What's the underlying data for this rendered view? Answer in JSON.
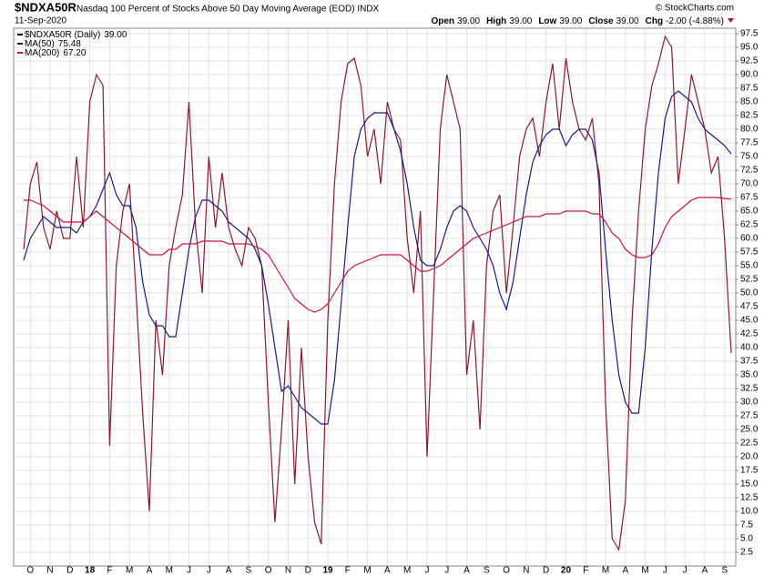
{
  "chart_data": {
    "type": "line",
    "title": "$NDXA50R",
    "subtitle": "Nasdaq 100 Percent of Stocks Above 50 Day Moving Average (EOD) INDX",
    "date": "11-Sep-2020",
    "source": "© StockCharts.com",
    "quote": [
      {
        "label": "Open",
        "value": "39.00"
      },
      {
        "label": "High",
        "value": "39.00"
      },
      {
        "label": "Low",
        "value": "39.00"
      },
      {
        "label": "Close",
        "value": "39.00"
      },
      {
        "label": "Chg",
        "value": "-2.00 (-4.88%)"
      }
    ],
    "categories": [
      null,
      "O",
      null,
      null,
      "N",
      null,
      null,
      "D",
      null,
      null,
      "18",
      null,
      null,
      "F",
      null,
      null,
      "M",
      null,
      null,
      "A",
      null,
      null,
      "M",
      null,
      null,
      "J",
      null,
      null,
      "J",
      null,
      null,
      "A",
      null,
      null,
      "S",
      null,
      null,
      "O",
      null,
      null,
      "N",
      null,
      null,
      "D",
      null,
      null,
      "19",
      null,
      null,
      "F",
      null,
      null,
      "M",
      null,
      null,
      "A",
      null,
      null,
      "M",
      null,
      null,
      "J",
      null,
      null,
      "J",
      null,
      null,
      "A",
      null,
      null,
      "S",
      null,
      null,
      "O",
      null,
      null,
      "N",
      null,
      null,
      "D",
      null,
      null,
      "20",
      null,
      null,
      "F",
      null,
      null,
      "M",
      null,
      null,
      "A",
      null,
      null,
      "M",
      null,
      null,
      "J",
      null,
      null,
      "J",
      null,
      null,
      "A",
      null,
      null,
      "S",
      null
    ],
    "series": [
      {
        "name": "$NDXA50R (Daily)",
        "last_label": "39.00",
        "color": "#8b1a2e",
        "width": 1.2,
        "values": [
          58,
          70,
          74,
          62,
          58,
          65,
          60,
          60,
          75,
          62,
          85,
          90,
          88,
          22,
          55,
          65,
          70,
          50,
          28,
          10,
          45,
          35,
          55,
          62,
          68,
          85,
          62,
          50,
          75,
          62,
          72,
          62,
          58,
          55,
          62,
          60,
          55,
          30,
          8,
          25,
          45,
          15,
          40,
          20,
          8,
          4,
          45,
          70,
          85,
          92,
          93,
          88,
          75,
          80,
          70,
          85,
          80,
          78,
          60,
          50,
          65,
          20,
          50,
          80,
          90,
          85,
          80,
          35,
          45,
          25,
          55,
          65,
          68,
          50,
          62,
          75,
          80,
          82,
          75,
          85,
          92,
          80,
          93,
          85,
          80,
          78,
          82,
          70,
          30,
          5,
          3,
          12,
          45,
          65,
          80,
          88,
          92,
          97,
          95,
          70,
          80,
          90,
          85,
          80,
          72,
          75,
          60,
          39
        ]
      },
      {
        "name": "MA(50)",
        "last_label": "75.48",
        "color": "#1a1a8c",
        "width": 1.2,
        "values": [
          56,
          60,
          62,
          64,
          63,
          62,
          62,
          62,
          61,
          63,
          64,
          66,
          69,
          72,
          68,
          66,
          66,
          62,
          52,
          46,
          44,
          44,
          42,
          42,
          50,
          58,
          64,
          67,
          67,
          66,
          65,
          63,
          62,
          61,
          60,
          58,
          55,
          48,
          40,
          32,
          33,
          31,
          29,
          28,
          27,
          26,
          26,
          34,
          48,
          62,
          75,
          80,
          82,
          83,
          83,
          83,
          80,
          76,
          70,
          62,
          56,
          55,
          55,
          58,
          62,
          65,
          66,
          65,
          62,
          60,
          58,
          55,
          50,
          47,
          52,
          60,
          68,
          74,
          77,
          79,
          80,
          80,
          77,
          79,
          80,
          80,
          78,
          72,
          58,
          45,
          35,
          30,
          28,
          28,
          40,
          58,
          72,
          82,
          86,
          87,
          86,
          85,
          82,
          80,
          79,
          78,
          77,
          75.48
        ]
      },
      {
        "name": "MA(200)",
        "last_label": "67.20",
        "color": "#d0103a",
        "width": 1.2,
        "values": [
          67,
          67,
          66.5,
          66,
          65,
          64,
          63,
          63,
          63,
          63,
          64,
          65,
          64,
          63,
          62,
          61,
          60,
          59,
          58,
          57,
          57,
          57,
          58,
          58,
          59,
          59,
          59,
          59.5,
          59.5,
          59.5,
          59.5,
          59,
          59,
          59,
          59,
          58.5,
          58,
          57,
          55,
          53,
          51,
          49,
          48,
          47,
          46.5,
          47,
          48,
          50,
          52,
          54,
          55,
          55.5,
          56,
          56.5,
          57,
          57,
          57,
          57,
          56,
          55,
          54,
          54,
          54.5,
          55,
          56,
          57,
          58,
          59,
          60,
          60.5,
          61,
          61.5,
          62,
          62.5,
          63,
          63.5,
          64,
          64,
          64,
          64.5,
          64.5,
          64.5,
          65,
          65,
          65,
          65,
          64.5,
          64.5,
          63,
          61,
          60,
          58,
          57,
          56.5,
          56.5,
          57,
          59,
          62,
          64,
          65,
          66,
          67,
          67.5,
          67.5,
          67.5,
          67.5,
          67.3,
          67.2
        ]
      }
    ],
    "ylim": [
      0,
      98.5
    ],
    "yticks": [
      2.5,
      {
        "value": 5,
        "label": "5.0"
      },
      7.5,
      {
        "value": 10,
        "label": "10.0"
      },
      12.5,
      {
        "value": 15,
        "label": "15.0"
      },
      17.5,
      {
        "value": 20,
        "label": "20.0"
      },
      22.5,
      {
        "value": 25,
        "label": "25.0"
      },
      27.5,
      {
        "value": 30,
        "label": "30.0"
      },
      32.5,
      {
        "value": 35,
        "label": "35.0"
      },
      37.5,
      {
        "value": 40,
        "label": "40.0"
      },
      42.5,
      {
        "value": 45,
        "label": "45.0"
      },
      47.5,
      {
        "value": 50,
        "label": "50.0"
      },
      52.5,
      {
        "value": 55,
        "label": "55.0"
      },
      57.5,
      {
        "value": 60,
        "label": "60.0"
      },
      62.5,
      {
        "value": 65,
        "label": "65.0"
      },
      67.5,
      {
        "value": 70,
        "label": "70.0"
      },
      72.5,
      {
        "value": 75,
        "label": "75.0"
      },
      77.5,
      {
        "value": 80,
        "label": "80.0"
      },
      82.5,
      {
        "value": 85,
        "label": "85.0"
      },
      87.5,
      {
        "value": 90,
        "label": "90.0"
      },
      92.5,
      {
        "value": 95,
        "label": "95.0"
      },
      97.5
    ],
    "grid": true
  }
}
